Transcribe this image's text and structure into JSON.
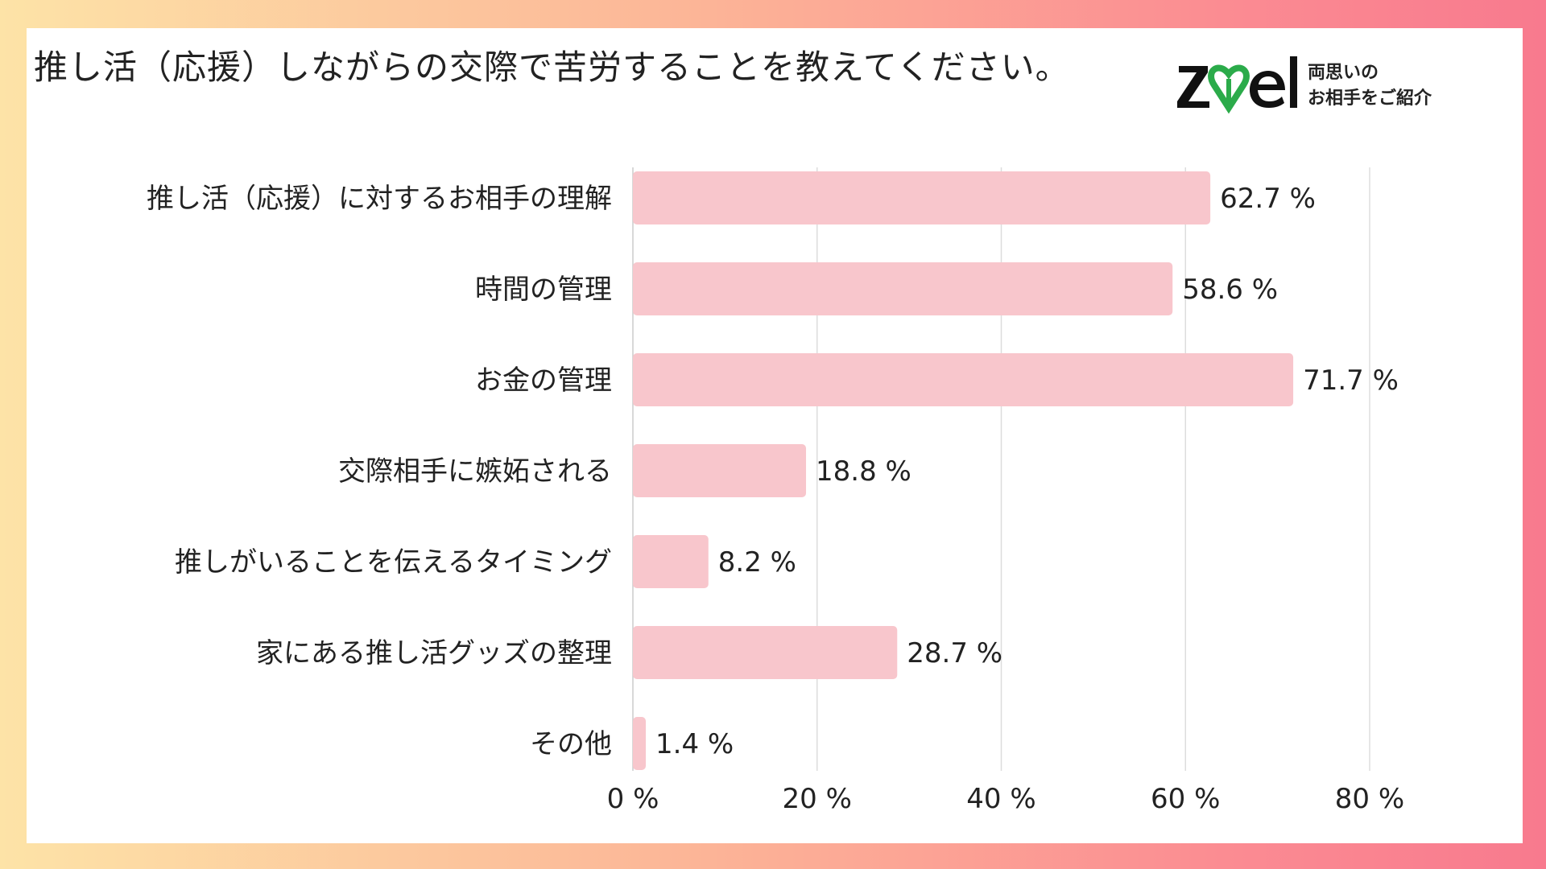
{
  "title": "推し活（応援）しながらの交際で苦労することを教えてください。",
  "brand": {
    "name": "zwei",
    "tagline_line1": "両思いの",
    "tagline_line2": "お相手をご紹介",
    "colors": {
      "wordmark": "#111111",
      "heart": "#2bab4a"
    }
  },
  "chart_data": {
    "type": "bar",
    "orientation": "horizontal",
    "categories": [
      "推し活（応援）に対するお相手の理解",
      "時間の管理",
      "お金の管理",
      "交際相手に嫉妬される",
      "推しがいることを伝えるタイミング",
      "家にある推し活グッズの整理",
      "その他"
    ],
    "values": [
      62.7,
      58.6,
      71.7,
      18.8,
      8.2,
      28.7,
      1.4
    ],
    "value_labels": [
      "62.7 %",
      "58.6 %",
      "71.7 %",
      "18.8 %",
      "8.2 %",
      "28.7 %",
      "1.4 %"
    ],
    "xlim": [
      0,
      80
    ],
    "ticks": [
      0,
      20,
      40,
      60,
      80
    ],
    "tick_labels": [
      "0 %",
      "20 %",
      "40 %",
      "60 %",
      "80 %"
    ],
    "grid": true,
    "colors": {
      "bar": "#f8c6cc",
      "grid": "#dddddd",
      "axis": "#cccccc"
    }
  }
}
